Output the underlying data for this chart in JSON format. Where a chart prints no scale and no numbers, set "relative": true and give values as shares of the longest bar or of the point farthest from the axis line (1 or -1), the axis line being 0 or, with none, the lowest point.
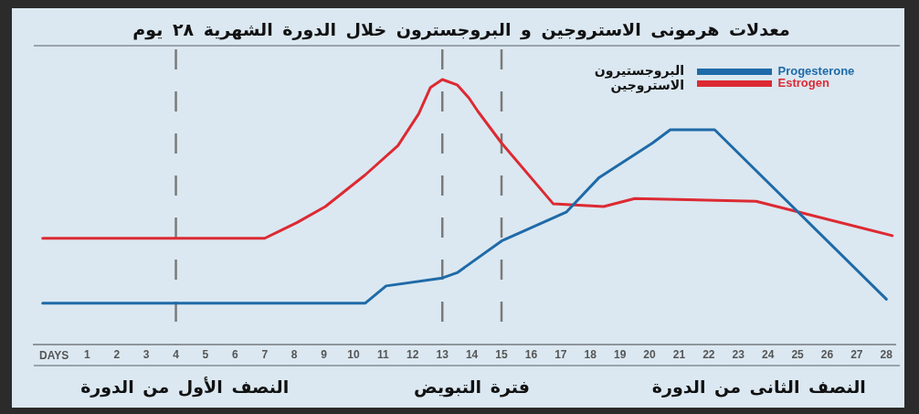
{
  "chart_data": {
    "type": "line",
    "title": "معدلات هرمونى الاستروجين و البروجسترون خلال الدورة الشهرية ٢٨ يوم",
    "xlabel": "DAYS",
    "relative": true,
    "marker": "none",
    "line_style": "solid",
    "legend": "top right",
    "xlim": [
      -0.8,
      28.3
    ],
    "xticks": [
      1,
      2,
      3,
      4,
      5,
      6,
      7,
      8,
      9,
      10,
      11,
      12,
      13,
      14,
      15,
      16,
      17,
      18,
      19,
      20,
      21,
      22,
      23,
      24,
      25,
      26,
      27,
      28
    ],
    "series": [
      {
        "name": "Progesterone",
        "color": "#1f6aa8",
        "x": [
          -0.5,
          10.4,
          11.1,
          13,
          13.5,
          15,
          17.2,
          18.3,
          20.1,
          20.7,
          22.2,
          28
        ],
        "values": [
          0.155,
          0.155,
          0.22,
          0.25,
          0.27,
          0.39,
          0.5,
          0.63,
          0.76,
          0.81,
          0.81,
          0.17
        ]
      },
      {
        "name": "Estrogen",
        "color": "#dc2a33",
        "x": [
          -0.5,
          7,
          8.1,
          9.05,
          10.4,
          11.5,
          12.2,
          12.6,
          13,
          13.5,
          13.9,
          14.2,
          15,
          16.75,
          18.45,
          19.5,
          23.6,
          28.2
        ],
        "values": [
          0.4,
          0.4,
          0.46,
          0.52,
          0.64,
          0.75,
          0.87,
          0.97,
          1,
          0.98,
          0.93,
          0.88,
          0.76,
          0.53,
          0.52,
          0.55,
          0.54,
          0.41
        ]
      }
    ],
    "ref_lines": [
      {
        "axis": "x",
        "value": 4,
        "color": "#7a7a7a",
        "line_style": "dashed"
      },
      {
        "axis": "x",
        "value": 13,
        "color": "#7a7a7a",
        "line_style": "dashed"
      },
      {
        "axis": "x",
        "value": 15,
        "color": "#7a7a7a",
        "line_style": "dashed"
      }
    ],
    "annotations": [
      "البروجستيرون",
      "الاستروجين",
      "النصف الأول من الدورة",
      "فترة التبويض",
      "النصف الثانى من الدورة"
    ]
  }
}
